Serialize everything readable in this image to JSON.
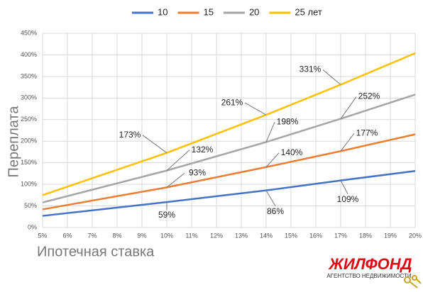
{
  "chart_data": {
    "type": "line",
    "x_label": "Ипотечная ставка",
    "y_label": "Переплата",
    "x": [
      5,
      10,
      14,
      17,
      20
    ],
    "series": [
      {
        "name": "10",
        "color": "#4472c4",
        "values": [
          27,
          59,
          86,
          109,
          131
        ],
        "value_labels": [
          null,
          "59%",
          "86%",
          "109%",
          null
        ]
      },
      {
        "name": "15",
        "color": "#ed7d31",
        "values": [
          42,
          93,
          140,
          177,
          216
        ],
        "value_labels": [
          null,
          "93%",
          "140%",
          "177%",
          null
        ]
      },
      {
        "name": "20",
        "color": "#a5a5a5",
        "values": [
          58,
          132,
          198,
          252,
          308
        ],
        "value_labels": [
          null,
          "132%",
          "198%",
          "252%",
          null
        ]
      },
      {
        "name": "25 лет",
        "color": "#ffc000",
        "values": [
          75,
          173,
          261,
          331,
          404
        ],
        "value_labels": [
          null,
          "173%",
          "261%",
          "331%",
          null
        ]
      }
    ],
    "xlim": [
      5,
      20
    ],
    "xticks": [
      {
        "value": 5,
        "label": "5%"
      },
      {
        "value": 6,
        "label": "6%"
      },
      {
        "value": 7,
        "label": "7%"
      },
      {
        "value": 8,
        "label": "8%"
      },
      {
        "value": 9,
        "label": "9%"
      },
      {
        "value": 10,
        "label": "10%"
      },
      {
        "value": 11,
        "label": "11%"
      },
      {
        "value": 12,
        "label": "12%"
      },
      {
        "value": 13,
        "label": "13%"
      },
      {
        "value": 14,
        "label": "14%"
      },
      {
        "value": 15,
        "label": "15%"
      },
      {
        "value": 16,
        "label": "16%"
      },
      {
        "value": 17,
        "label": "17%"
      },
      {
        "value": 18,
        "label": "18%"
      },
      {
        "value": 19,
        "label": "19%"
      },
      {
        "value": 20,
        "label": "20%"
      }
    ],
    "ylim": [
      0,
      450
    ],
    "yticks": [
      {
        "value": 0,
        "label": "0%"
      },
      {
        "value": 50,
        "label": "50%"
      },
      {
        "value": 100,
        "label": "100%"
      },
      {
        "value": 150,
        "label": "150%"
      },
      {
        "value": 200,
        "label": "200%"
      },
      {
        "value": 250,
        "label": "250%"
      },
      {
        "value": 300,
        "label": "300%"
      },
      {
        "value": 350,
        "label": "350%"
      },
      {
        "value": 400,
        "label": "400%"
      },
      {
        "value": 450,
        "label": "450%"
      }
    ],
    "grid": true
  },
  "logo": {
    "name": "ЖИЛФОНД",
    "tagline": "АГЕНТСТВО НЕДВИЖИМОСТИ"
  }
}
